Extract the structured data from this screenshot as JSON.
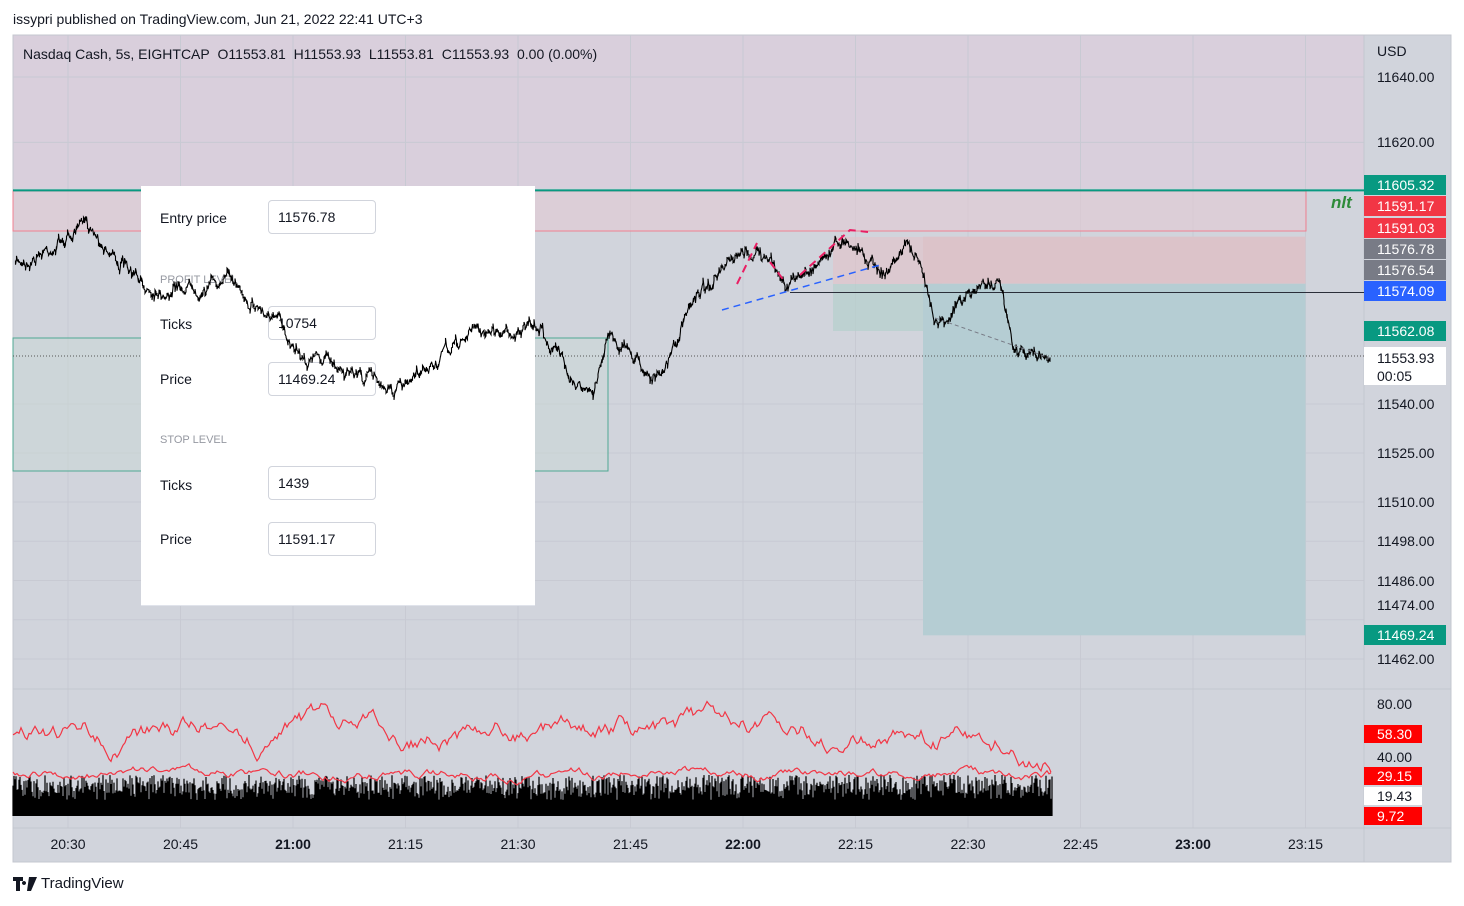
{
  "header": {
    "published": "issypri published on TradingView.com, Jun 21, 2022 22:41 UTC+3"
  },
  "legend": {
    "symbol": "Nasdaq Cash, 5s, EIGHTCAP",
    "open": "O11553.81",
    "high": "H11553.93",
    "low": "L11553.81",
    "close": "C11553.93",
    "change": "0.00 (0.00%)"
  },
  "dialog": {
    "entry_label": "Entry price",
    "entry_value": "11576.78",
    "profit_section": "PROFIT LEVEL",
    "profit_ticks_label": "Ticks",
    "profit_ticks": "10754",
    "profit_price_label": "Price",
    "profit_price": "11469.24",
    "stop_section": "STOP LEVEL",
    "stop_ticks_label": "Ticks",
    "stop_ticks": "1439",
    "stop_price_label": "Price",
    "stop_price": "11591.17"
  },
  "annotation": "nlt",
  "currency": "USD",
  "price_labels": [
    {
      "text": "11605.32",
      "color": "#089981",
      "price": 11605.32
    },
    {
      "text": "11591.17",
      "color": "#f23645",
      "price": 11591.17
    },
    {
      "text": "11591.03",
      "color": "#f23645",
      "price": 11591.03
    },
    {
      "text": "11576.78",
      "color": "#787b86",
      "price": 11576.78
    },
    {
      "text": "11576.54",
      "color": "#787b86",
      "price": 11576.54
    },
    {
      "text": "11574.09",
      "color": "#2962ff",
      "price": 11574.09
    },
    {
      "text": "11562.08",
      "color": "#089981",
      "price": 11562.08
    },
    {
      "text": "11469.24",
      "color": "#089981",
      "price": 11469.24
    }
  ],
  "last_price": {
    "price": "11553.93",
    "countdown": "00:05"
  },
  "indicator_labels": [
    {
      "text": "58.30",
      "color": "#ff0000"
    },
    {
      "text": "29.15",
      "color": "#ff0000"
    },
    {
      "text": "19.43",
      "color": "#ffffff"
    },
    {
      "text": "9.72",
      "color": "#ff0000"
    }
  ],
  "footer": {
    "brand": "TradingView"
  },
  "chart_data": {
    "type": "line",
    "title": "Nasdaq Cash, 5s, EIGHTCAP",
    "ylabel": "USD",
    "ylim": [
      11462,
      11640
    ],
    "y_ticks": [
      "11640.00",
      "11620.00",
      "11540.00",
      "11525.00",
      "11510.00",
      "11498.00",
      "11486.00",
      "11474.00",
      "11462.00"
    ],
    "y_tick_values": [
      11640,
      11620,
      11540,
      11525,
      11510,
      11498,
      11486,
      11474,
      11462
    ],
    "x_ticks": [
      "20:30",
      "20:45",
      "21:00",
      "21:15",
      "21:30",
      "21:45",
      "22:00",
      "22:15",
      "22:30",
      "22:45",
      "23:00",
      "23:15"
    ],
    "x_ticks_bold": [
      "21:00",
      "22:00",
      "23:00"
    ],
    "series": [
      {
        "name": "price",
        "points": [
          [
            "20:23",
            11582.5
          ],
          [
            "20:33",
            11594.7
          ],
          [
            "20:40",
            11575
          ],
          [
            "20:52",
            11578
          ],
          [
            "21:02",
            11555
          ],
          [
            "21:15",
            11544
          ],
          [
            "21:24",
            11562.6
          ],
          [
            "21:33",
            11562.6
          ],
          [
            "21:40",
            11541
          ],
          [
            "21:42",
            11562.6
          ],
          [
            "21:49",
            11547
          ],
          [
            "21:54",
            11575
          ],
          [
            "22:02",
            11587
          ],
          [
            "22:06",
            11576
          ],
          [
            "22:14",
            11591.7
          ],
          [
            "22:19",
            11579.5
          ],
          [
            "22:22",
            11590
          ],
          [
            "22:26",
            11565.7
          ],
          [
            "22:34",
            11579.5
          ],
          [
            "22:36",
            11556.5
          ],
          [
            "22:41",
            11553.93
          ]
        ]
      }
    ],
    "indicator": {
      "ylim": [
        0,
        100
      ],
      "y_ticks": [
        "80.00",
        "40.00"
      ],
      "rsi_mean": 58.3,
      "lower_mean": 29.15
    },
    "position": {
      "entry": 11576.78,
      "stop": 11591.17,
      "target": 11469.24,
      "start": "22:24",
      "end": "23:15"
    }
  },
  "colors": {
    "bg": "#d1d4dc",
    "top_band": "#d9cfdc",
    "up": "#089981",
    "down": "#f23645"
  }
}
